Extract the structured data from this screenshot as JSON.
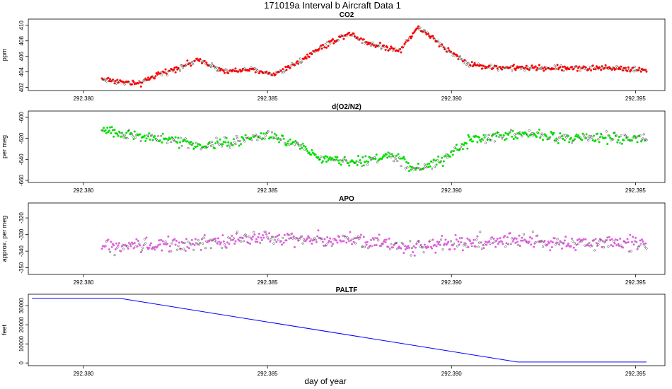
{
  "title": "171019a   Interval b Aircraft Data 1",
  "xlabel": "day of year",
  "x_ticks": [
    "292.380",
    "292.385",
    "292.390",
    "292.395"
  ],
  "xlim": [
    292.3785,
    292.3958
  ],
  "chart_data": [
    {
      "type": "scatter",
      "title": "CO2",
      "ylabel": "ppm",
      "color": "#ff0000",
      "ylim": [
        401.6,
        410.8
      ],
      "y_ticks": [
        402,
        404,
        406,
        408,
        410
      ],
      "x_range": [
        292.3805,
        292.3953
      ],
      "x_profile": [
        292.3805,
        292.3815,
        292.382,
        292.3832,
        292.3838,
        292.3845,
        292.3852,
        292.3858,
        292.3864,
        292.3872,
        292.3878,
        292.3886,
        292.3891,
        292.3897,
        292.3905,
        292.3915,
        292.393,
        292.3945,
        292.3953
      ],
      "y_profile": [
        403.1,
        402.4,
        403.6,
        405.6,
        404.0,
        404.3,
        403.7,
        405.2,
        407.0,
        409.0,
        407.6,
        406.8,
        409.8,
        407.5,
        404.9,
        404.5,
        404.5,
        404.5,
        404.2
      ],
      "y_noise": 0.3
    },
    {
      "type": "scatter",
      "title": "d(O2/N2)",
      "ylabel": "per meg",
      "color": "#00e000",
      "ylim": [
        -662,
        -594
      ],
      "y_ticks": [
        -600,
        -620,
        -640,
        -660
      ],
      "x_range": [
        292.3805,
        292.3953
      ],
      "x_profile": [
        292.3805,
        292.382,
        292.3832,
        292.385,
        292.3858,
        292.3865,
        292.3875,
        292.3885,
        292.389,
        292.3897,
        292.3905,
        292.392,
        292.393,
        292.3953
      ],
      "y_profile": [
        -612,
        -620,
        -627,
        -617,
        -625,
        -640,
        -642,
        -636,
        -650,
        -641,
        -622,
        -615,
        -619,
        -621
      ],
      "y_noise": 4
    },
    {
      "type": "scatter",
      "title": "APO",
      "ylabel": "approx. per meg",
      "color": "#e060e0",
      "ylim": [
        -354,
        -311
      ],
      "y_ticks": [
        -320,
        -330,
        -340,
        -350
      ],
      "x_range": [
        292.3805,
        292.3953
      ],
      "x_profile": [
        292.3805,
        292.382,
        292.3845,
        292.387,
        292.389,
        292.3915,
        292.393,
        292.3953
      ],
      "y_profile": [
        -337,
        -337,
        -332,
        -333,
        -337,
        -333,
        -335,
        -335
      ],
      "y_noise": 3.5
    },
    {
      "type": "line",
      "title": "PALTF",
      "ylabel": "feet",
      "color": "#0000ff",
      "ylim": [
        -1400,
        36000
      ],
      "y_ticks": [
        0,
        10000,
        20000,
        30000
      ],
      "series": [
        {
          "x": [
            292.3786,
            292.381,
            292.3918,
            292.3953
          ],
          "y": [
            33800,
            33800,
            500,
            500
          ]
        }
      ]
    }
  ]
}
